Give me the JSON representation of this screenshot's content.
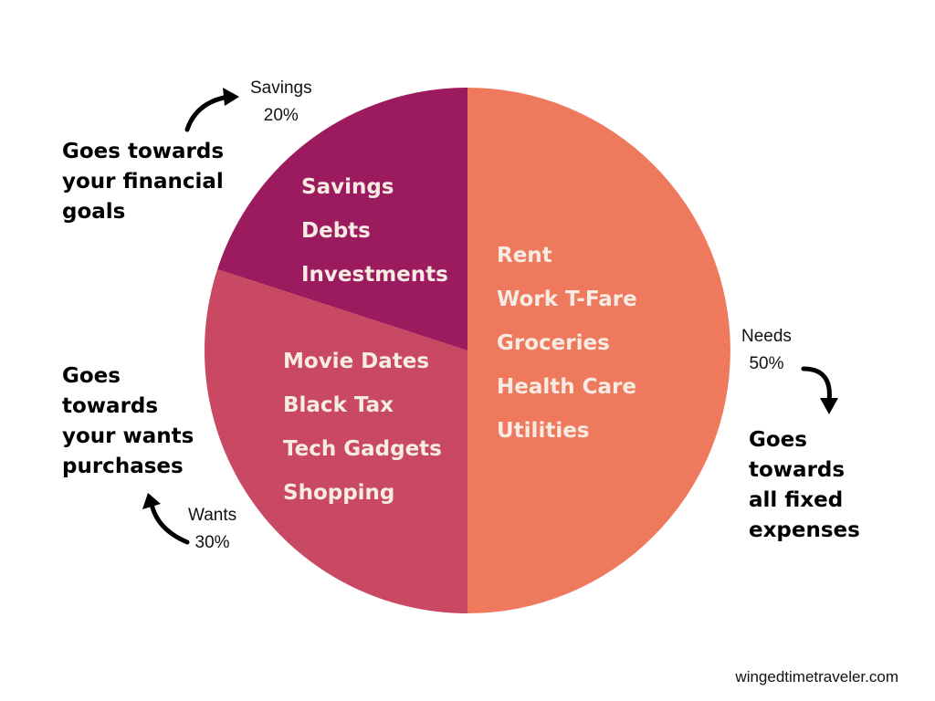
{
  "chart_data": {
    "type": "pie",
    "start": "top",
    "direction": "clockwise",
    "slices": [
      {
        "name": "Needs",
        "value": 50,
        "percent_label": "50%",
        "color": "#ee795d",
        "items": [
          "Rent",
          "Work T-Fare",
          "Groceries",
          "Health Care",
          "Utilities"
        ],
        "description": [
          "Goes",
          "towards",
          "all fixed",
          "expenses"
        ]
      },
      {
        "name": "Wants",
        "value": 30,
        "percent_label": "30%",
        "color": "#c94862",
        "items": [
          "Movie Dates",
          "Black Tax",
          "Tech Gadgets",
          "Shopping"
        ],
        "description": [
          "Goes",
          "towards",
          "your wants",
          "purchases"
        ]
      },
      {
        "name": "Savings",
        "value": 20,
        "percent_label": "20%",
        "color": "#9c1b5e",
        "items": [
          "Savings",
          "Debts",
          "Investments"
        ],
        "description": [
          "Goes towards",
          "your financial",
          "goals"
        ]
      }
    ]
  },
  "source": "wingedtimetraveler.com",
  "icons": {
    "arrow": "curved-arrow-icon"
  }
}
